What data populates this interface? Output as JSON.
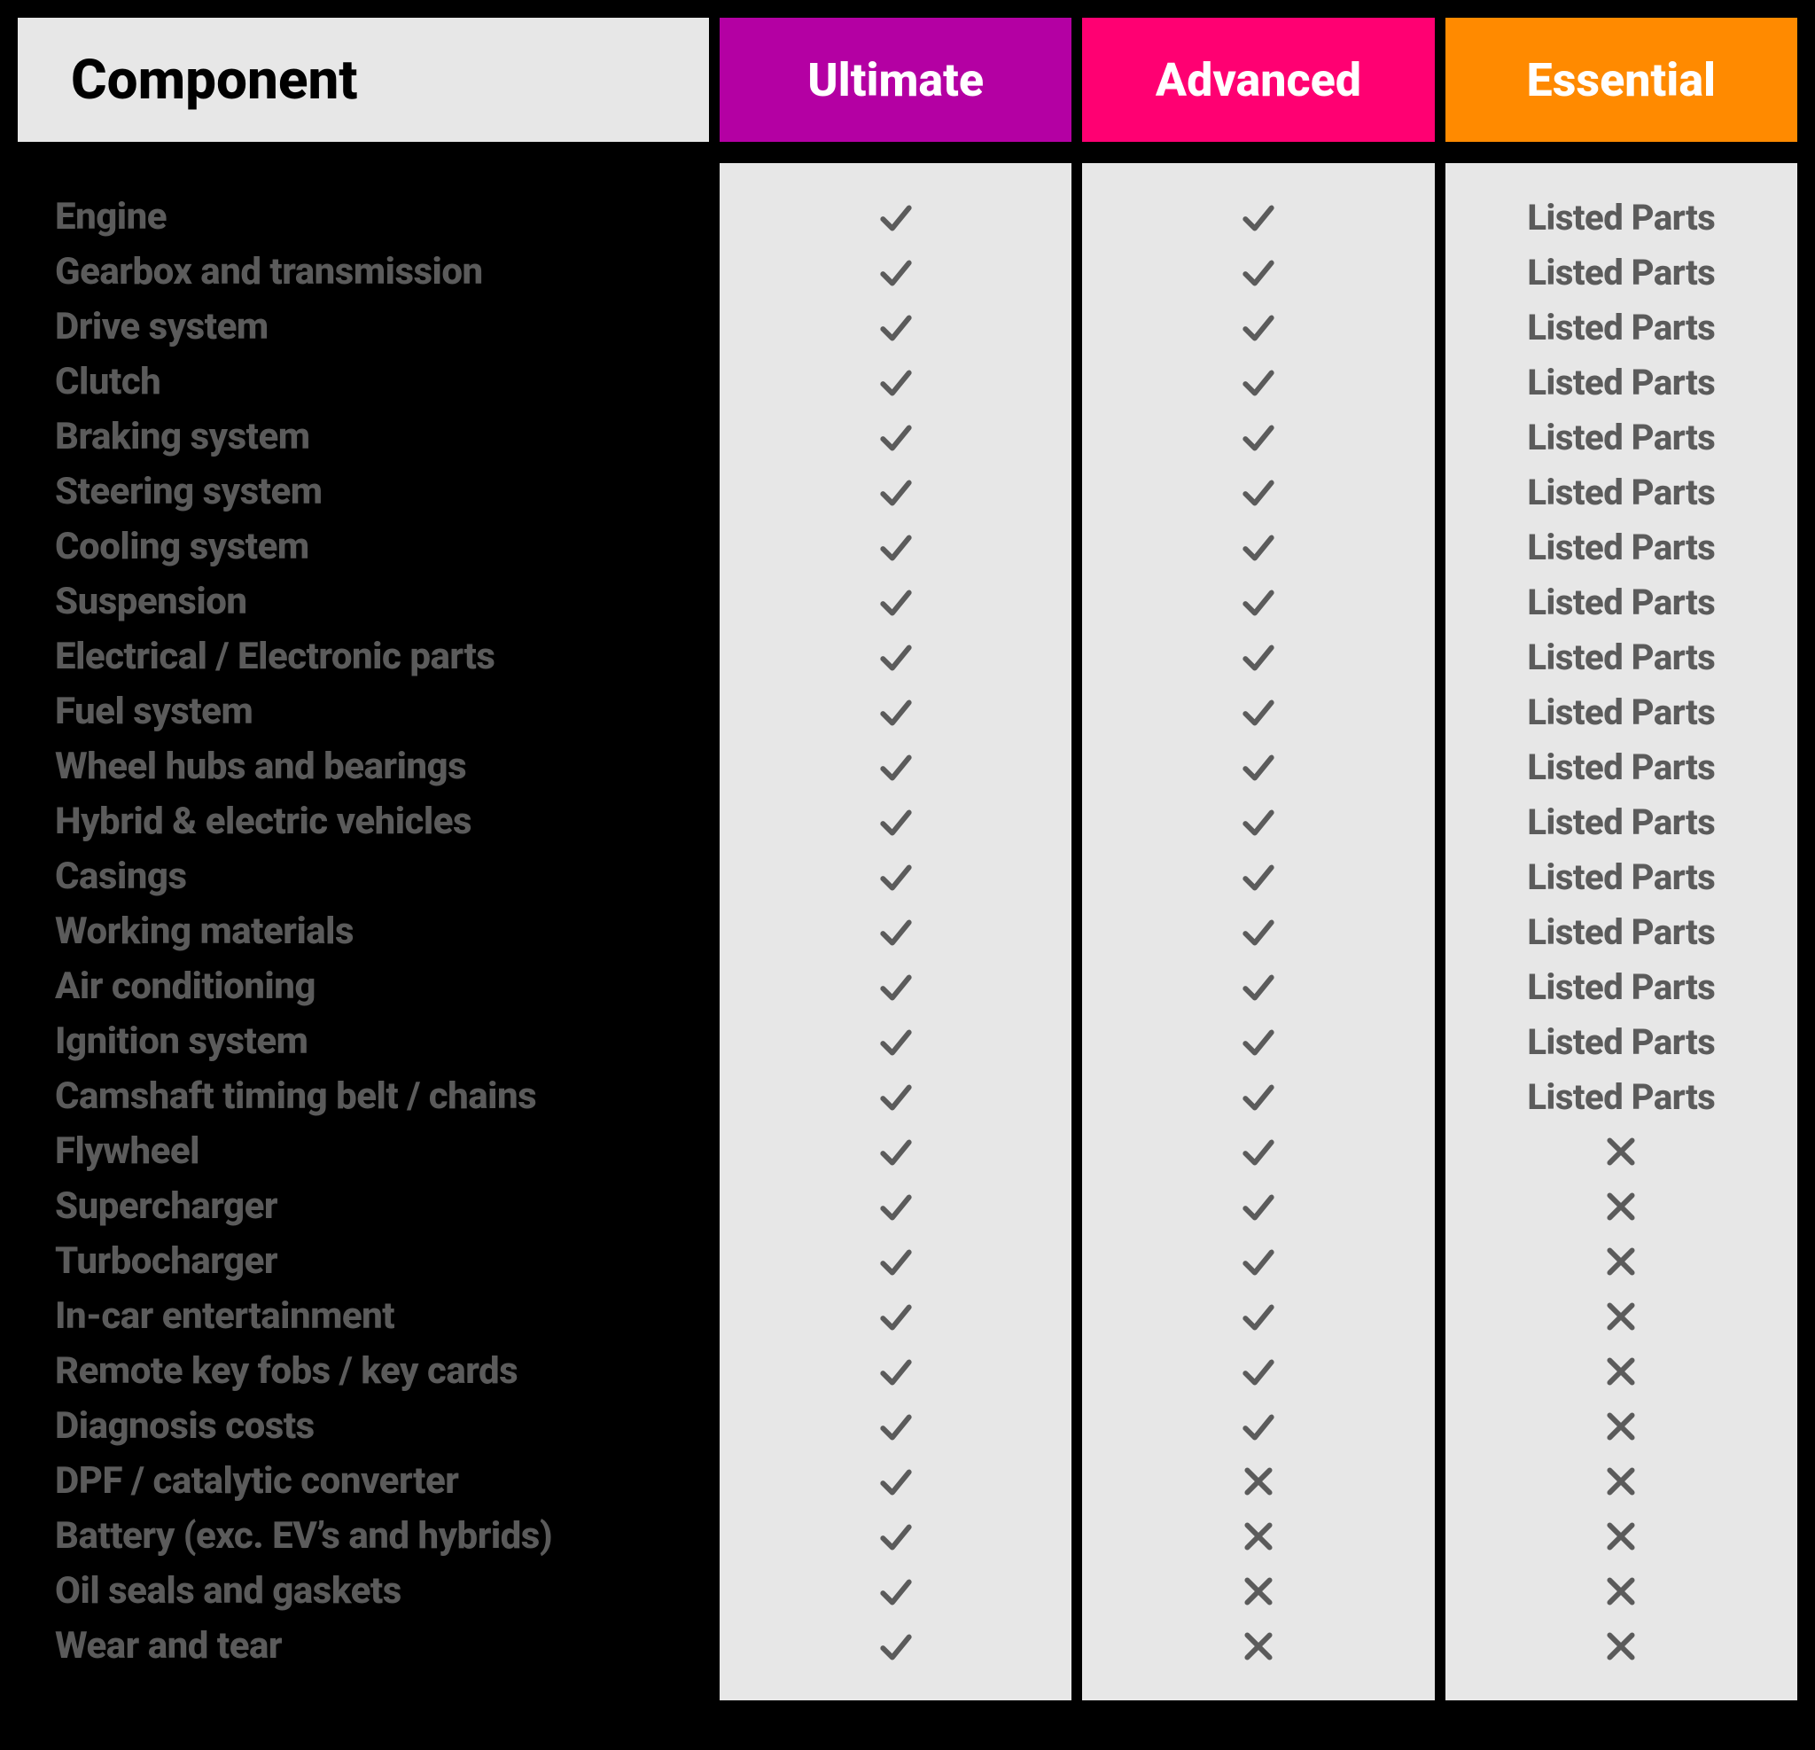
{
  "headers": {
    "component": "Component",
    "tiers": [
      {
        "label": "Ultimate",
        "bg": "#b400a3"
      },
      {
        "label": "Advanced",
        "bg": "#ff0072"
      },
      {
        "label": "Essential",
        "bg": "#ff8a00"
      }
    ]
  },
  "listed_parts_text": "Listed Parts",
  "rows": [
    {
      "label": "Engine",
      "cells": [
        "check",
        "check",
        "listed"
      ]
    },
    {
      "label": "Gearbox and transmission",
      "cells": [
        "check",
        "check",
        "listed"
      ]
    },
    {
      "label": "Drive system",
      "cells": [
        "check",
        "check",
        "listed"
      ]
    },
    {
      "label": "Clutch",
      "cells": [
        "check",
        "check",
        "listed"
      ]
    },
    {
      "label": "Braking system",
      "cells": [
        "check",
        "check",
        "listed"
      ]
    },
    {
      "label": "Steering system",
      "cells": [
        "check",
        "check",
        "listed"
      ]
    },
    {
      "label": "Cooling system",
      "cells": [
        "check",
        "check",
        "listed"
      ]
    },
    {
      "label": "Suspension",
      "cells": [
        "check",
        "check",
        "listed"
      ]
    },
    {
      "label": "Electrical / Electronic parts",
      "cells": [
        "check",
        "check",
        "listed"
      ]
    },
    {
      "label": "Fuel system",
      "cells": [
        "check",
        "check",
        "listed"
      ]
    },
    {
      "label": "Wheel hubs and bearings",
      "cells": [
        "check",
        "check",
        "listed"
      ]
    },
    {
      "label": "Hybrid & electric vehicles",
      "cells": [
        "check",
        "check",
        "listed"
      ]
    },
    {
      "label": "Casings",
      "cells": [
        "check",
        "check",
        "listed"
      ]
    },
    {
      "label": "Working materials",
      "cells": [
        "check",
        "check",
        "listed"
      ]
    },
    {
      "label": "Air conditioning",
      "cells": [
        "check",
        "check",
        "listed"
      ]
    },
    {
      "label": "Ignition system",
      "cells": [
        "check",
        "check",
        "listed"
      ]
    },
    {
      "label": "Camshaft timing belt / chains",
      "cells": [
        "check",
        "check",
        "listed"
      ]
    },
    {
      "label": "Flywheel",
      "cells": [
        "check",
        "check",
        "cross"
      ]
    },
    {
      "label": "Supercharger",
      "cells": [
        "check",
        "check",
        "cross"
      ]
    },
    {
      "label": "Turbocharger",
      "cells": [
        "check",
        "check",
        "cross"
      ]
    },
    {
      "label": "In-car entertainment",
      "cells": [
        "check",
        "check",
        "cross"
      ]
    },
    {
      "label": "Remote key fobs / key cards",
      "cells": [
        "check",
        "check",
        "cross"
      ]
    },
    {
      "label": "Diagnosis costs",
      "cells": [
        "check",
        "check",
        "cross"
      ]
    },
    {
      "label": "DPF / catalytic converter",
      "cells": [
        "check",
        "cross",
        "cross"
      ]
    },
    {
      "label": "Battery (exc. EV’s and hybrids)",
      "cells": [
        "check",
        "cross",
        "cross"
      ]
    },
    {
      "label": "Oil seals and gaskets",
      "cells": [
        "check",
        "cross",
        "cross"
      ]
    },
    {
      "label": "Wear and tear",
      "cells": [
        "check",
        "cross",
        "cross"
      ]
    }
  ]
}
